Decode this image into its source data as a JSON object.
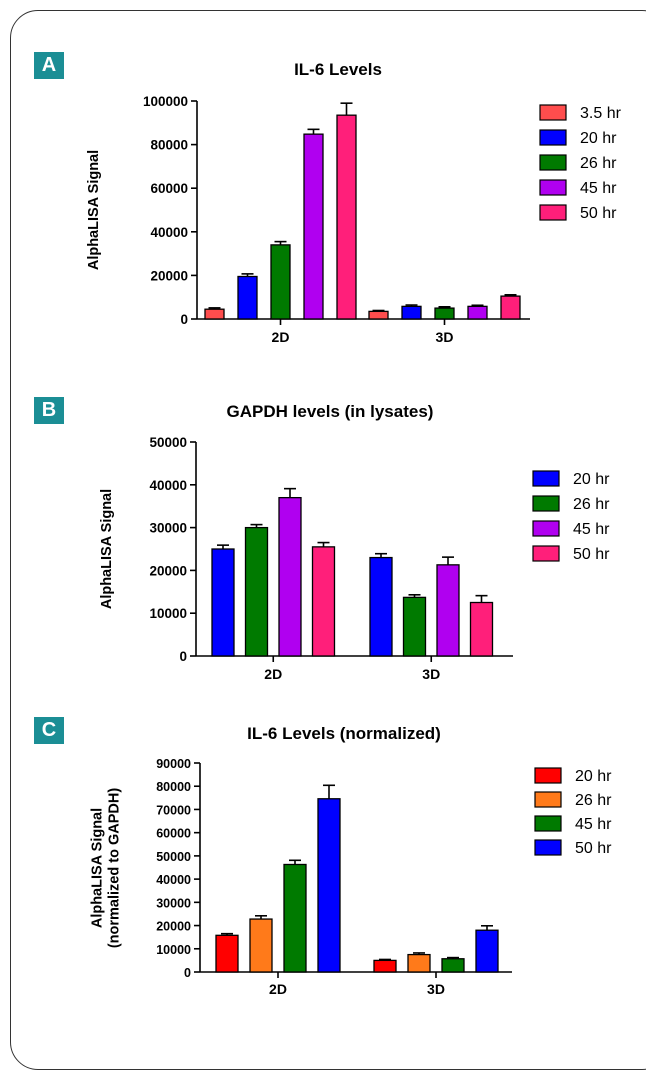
{
  "panels": [
    {
      "letter": "A"
    },
    {
      "letter": "B"
    },
    {
      "letter": "C"
    }
  ],
  "chart_data": [
    {
      "type": "bar",
      "title": "IL-6 Levels",
      "xlabel": "",
      "ylabel": [
        "AlphaLISA Signal"
      ],
      "categories": [
        "2D",
        "3D"
      ],
      "ylim": [
        0,
        100000
      ],
      "yticks": [
        0,
        20000,
        40000,
        60000,
        80000,
        100000
      ],
      "ytick_labels": [
        "0",
        "20000",
        "40000",
        "60000",
        "80000",
        "100000"
      ],
      "legend_position": "right",
      "series": [
        {
          "name": "3.5 hr",
          "color": "#ff4d4d",
          "values": [
            4500,
            3500
          ],
          "errors": [
            600,
            400
          ]
        },
        {
          "name": "20 hr",
          "color": "#0000ff",
          "values": [
            19500,
            5800
          ],
          "errors": [
            1200,
            600
          ]
        },
        {
          "name": "26 hr",
          "color": "#007a00",
          "values": [
            34000,
            5000
          ],
          "errors": [
            1500,
            600
          ]
        },
        {
          "name": "45 hr",
          "color": "#b000f0",
          "values": [
            84800,
            5800
          ],
          "errors": [
            2200,
            500
          ]
        },
        {
          "name": "50 hr",
          "color": "#ff1f7a",
          "values": [
            93500,
            10500
          ],
          "errors": [
            5500,
            600
          ]
        }
      ]
    },
    {
      "type": "bar",
      "title": "GAPDH levels (in  lysates)",
      "xlabel": "",
      "ylabel": [
        "AlphaLISA Signal"
      ],
      "categories": [
        "2D",
        "3D"
      ],
      "ylim": [
        0,
        50000
      ],
      "yticks": [
        0,
        10000,
        20000,
        30000,
        40000,
        50000
      ],
      "ytick_labels": [
        "0",
        "10000",
        "20000",
        "30000",
        "40000",
        "50000"
      ],
      "legend_position": "right",
      "series": [
        {
          "name": "20 hr",
          "color": "#0000ff",
          "values": [
            25000,
            23000
          ],
          "errors": [
            900,
            900
          ]
        },
        {
          "name": "26 hr",
          "color": "#007a00",
          "values": [
            30000,
            13700
          ],
          "errors": [
            700,
            600
          ]
        },
        {
          "name": "45 hr",
          "color": "#b000f0",
          "values": [
            37000,
            21300
          ],
          "errors": [
            2100,
            1800
          ]
        },
        {
          "name": "50 hr",
          "color": "#ff1f7a",
          "values": [
            25500,
            12500
          ],
          "errors": [
            1000,
            1600
          ]
        }
      ]
    },
    {
      "type": "bar",
      "title": "IL-6 Levels (normalized)",
      "xlabel": "",
      "ylabel": [
        "AlphaLISA Signal",
        "(normalized to GAPDH)"
      ],
      "categories": [
        "2D",
        "3D"
      ],
      "ylim": [
        0,
        90000
      ],
      "yticks": [
        0,
        10000,
        20000,
        30000,
        40000,
        50000,
        60000,
        70000,
        80000,
        90000
      ],
      "ytick_labels": [
        "0",
        "10000",
        "20000",
        "30000",
        "40000",
        "50000",
        "60000",
        "70000",
        "80000",
        "90000"
      ],
      "legend_position": "right",
      "series": [
        {
          "name": "20 hr",
          "color": "#ff0000",
          "values": [
            15800,
            5000
          ],
          "errors": [
            700,
            400
          ]
        },
        {
          "name": "26 hr",
          "color": "#ff7a1a",
          "values": [
            22800,
            7500
          ],
          "errors": [
            1400,
            700
          ]
        },
        {
          "name": "45 hr",
          "color": "#007a00",
          "values": [
            46300,
            5700
          ],
          "errors": [
            1800,
            500
          ]
        },
        {
          "name": "50 hr",
          "color": "#0000ff",
          "values": [
            74600,
            18000
          ],
          "errors": [
            5800,
            1900
          ]
        }
      ]
    }
  ]
}
